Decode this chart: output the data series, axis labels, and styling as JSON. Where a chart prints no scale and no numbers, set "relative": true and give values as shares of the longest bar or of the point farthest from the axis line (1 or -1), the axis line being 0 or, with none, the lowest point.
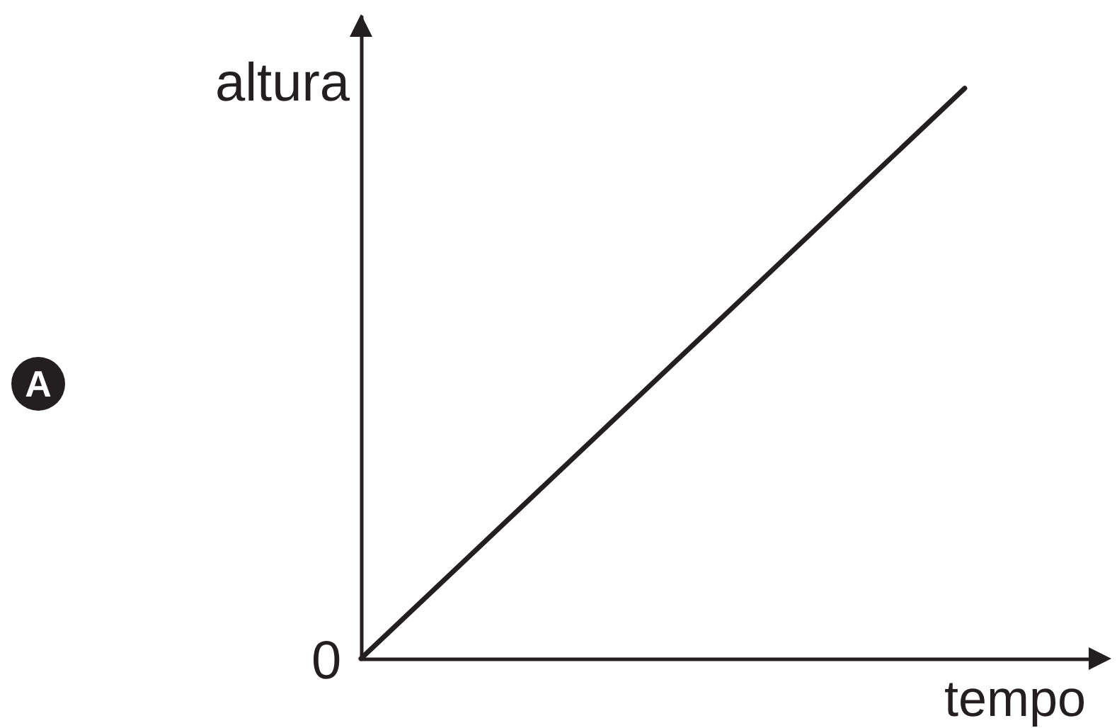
{
  "chart_data": {
    "type": "line",
    "relative": true,
    "xlabel": "tempo",
    "ylabel": "altura",
    "annotations": [
      "0",
      "A"
    ],
    "categories": [
      null,
      null
    ],
    "series": [
      {
        "color": "#231f20",
        "values": [
          0,
          1
        ]
      }
    ],
    "grid": false,
    "marker": "none",
    "line_style": "solid"
  }
}
